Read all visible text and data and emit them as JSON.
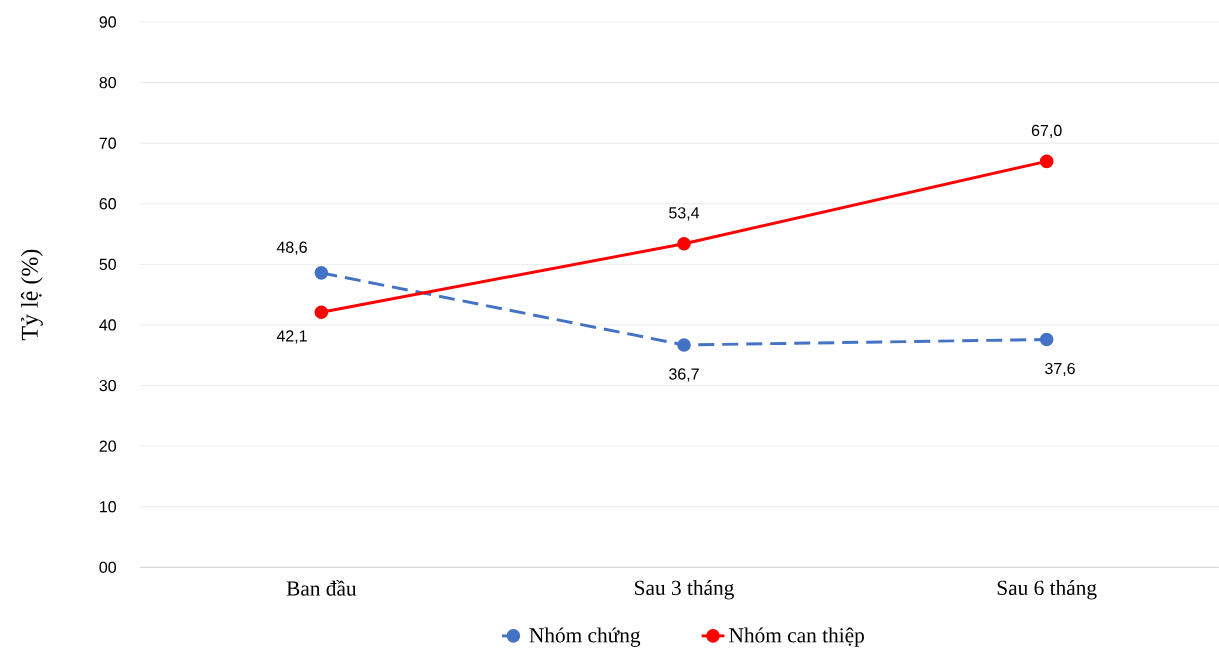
{
  "chart_data": {
    "type": "line",
    "ylabel": "Tỷ lệ (%)",
    "categories": [
      "Ban đầu",
      "Sau 3 tháng",
      "Sau 6 tháng"
    ],
    "series": [
      {
        "name": "Nhóm chứng",
        "color": "#4472c4",
        "line_style": "dashed",
        "values": [
          48.6,
          36.7,
          37.6
        ],
        "value_labels": [
          "48,6",
          "36,7",
          "37,6"
        ]
      },
      {
        "name": "Nhóm can thiệp",
        "color": "#ff0000",
        "line_style": "solid",
        "values": [
          42.1,
          53.4,
          67.0
        ],
        "value_labels": [
          "42,1",
          "53,4",
          "67,0"
        ]
      }
    ],
    "ylim": [
      0,
      90
    ],
    "yticks": [
      {
        "value": 0,
        "label": "00"
      },
      10,
      20,
      30,
      40,
      50,
      60,
      70,
      80,
      90
    ],
    "grid": "y",
    "legend": "bottom",
    "marker": "circle"
  }
}
